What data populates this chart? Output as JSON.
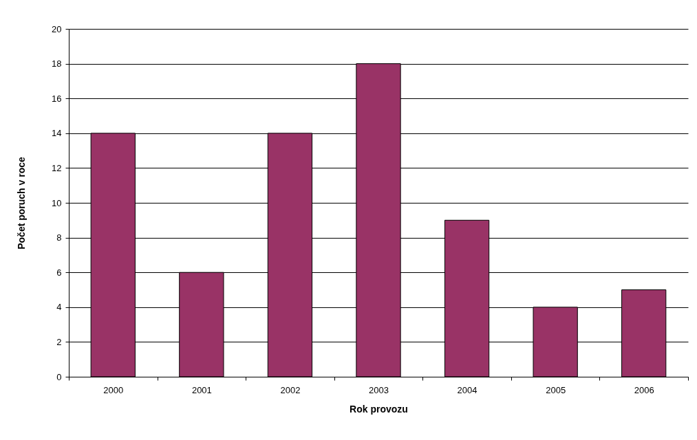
{
  "chart_data": {
    "type": "bar",
    "xlabel": "Rok provozu",
    "ylabel": "Počet poruch v roce",
    "categories": [
      "2000",
      "2001",
      "2002",
      "2003",
      "2004",
      "2005",
      "2006"
    ],
    "values": [
      14,
      6,
      14,
      18,
      9,
      4,
      5
    ],
    "color": "#993366",
    "ylim": [
      0,
      20
    ],
    "yticks": [
      0,
      2,
      4,
      6,
      8,
      10,
      12,
      14,
      16,
      18,
      20
    ],
    "grid": "y"
  }
}
